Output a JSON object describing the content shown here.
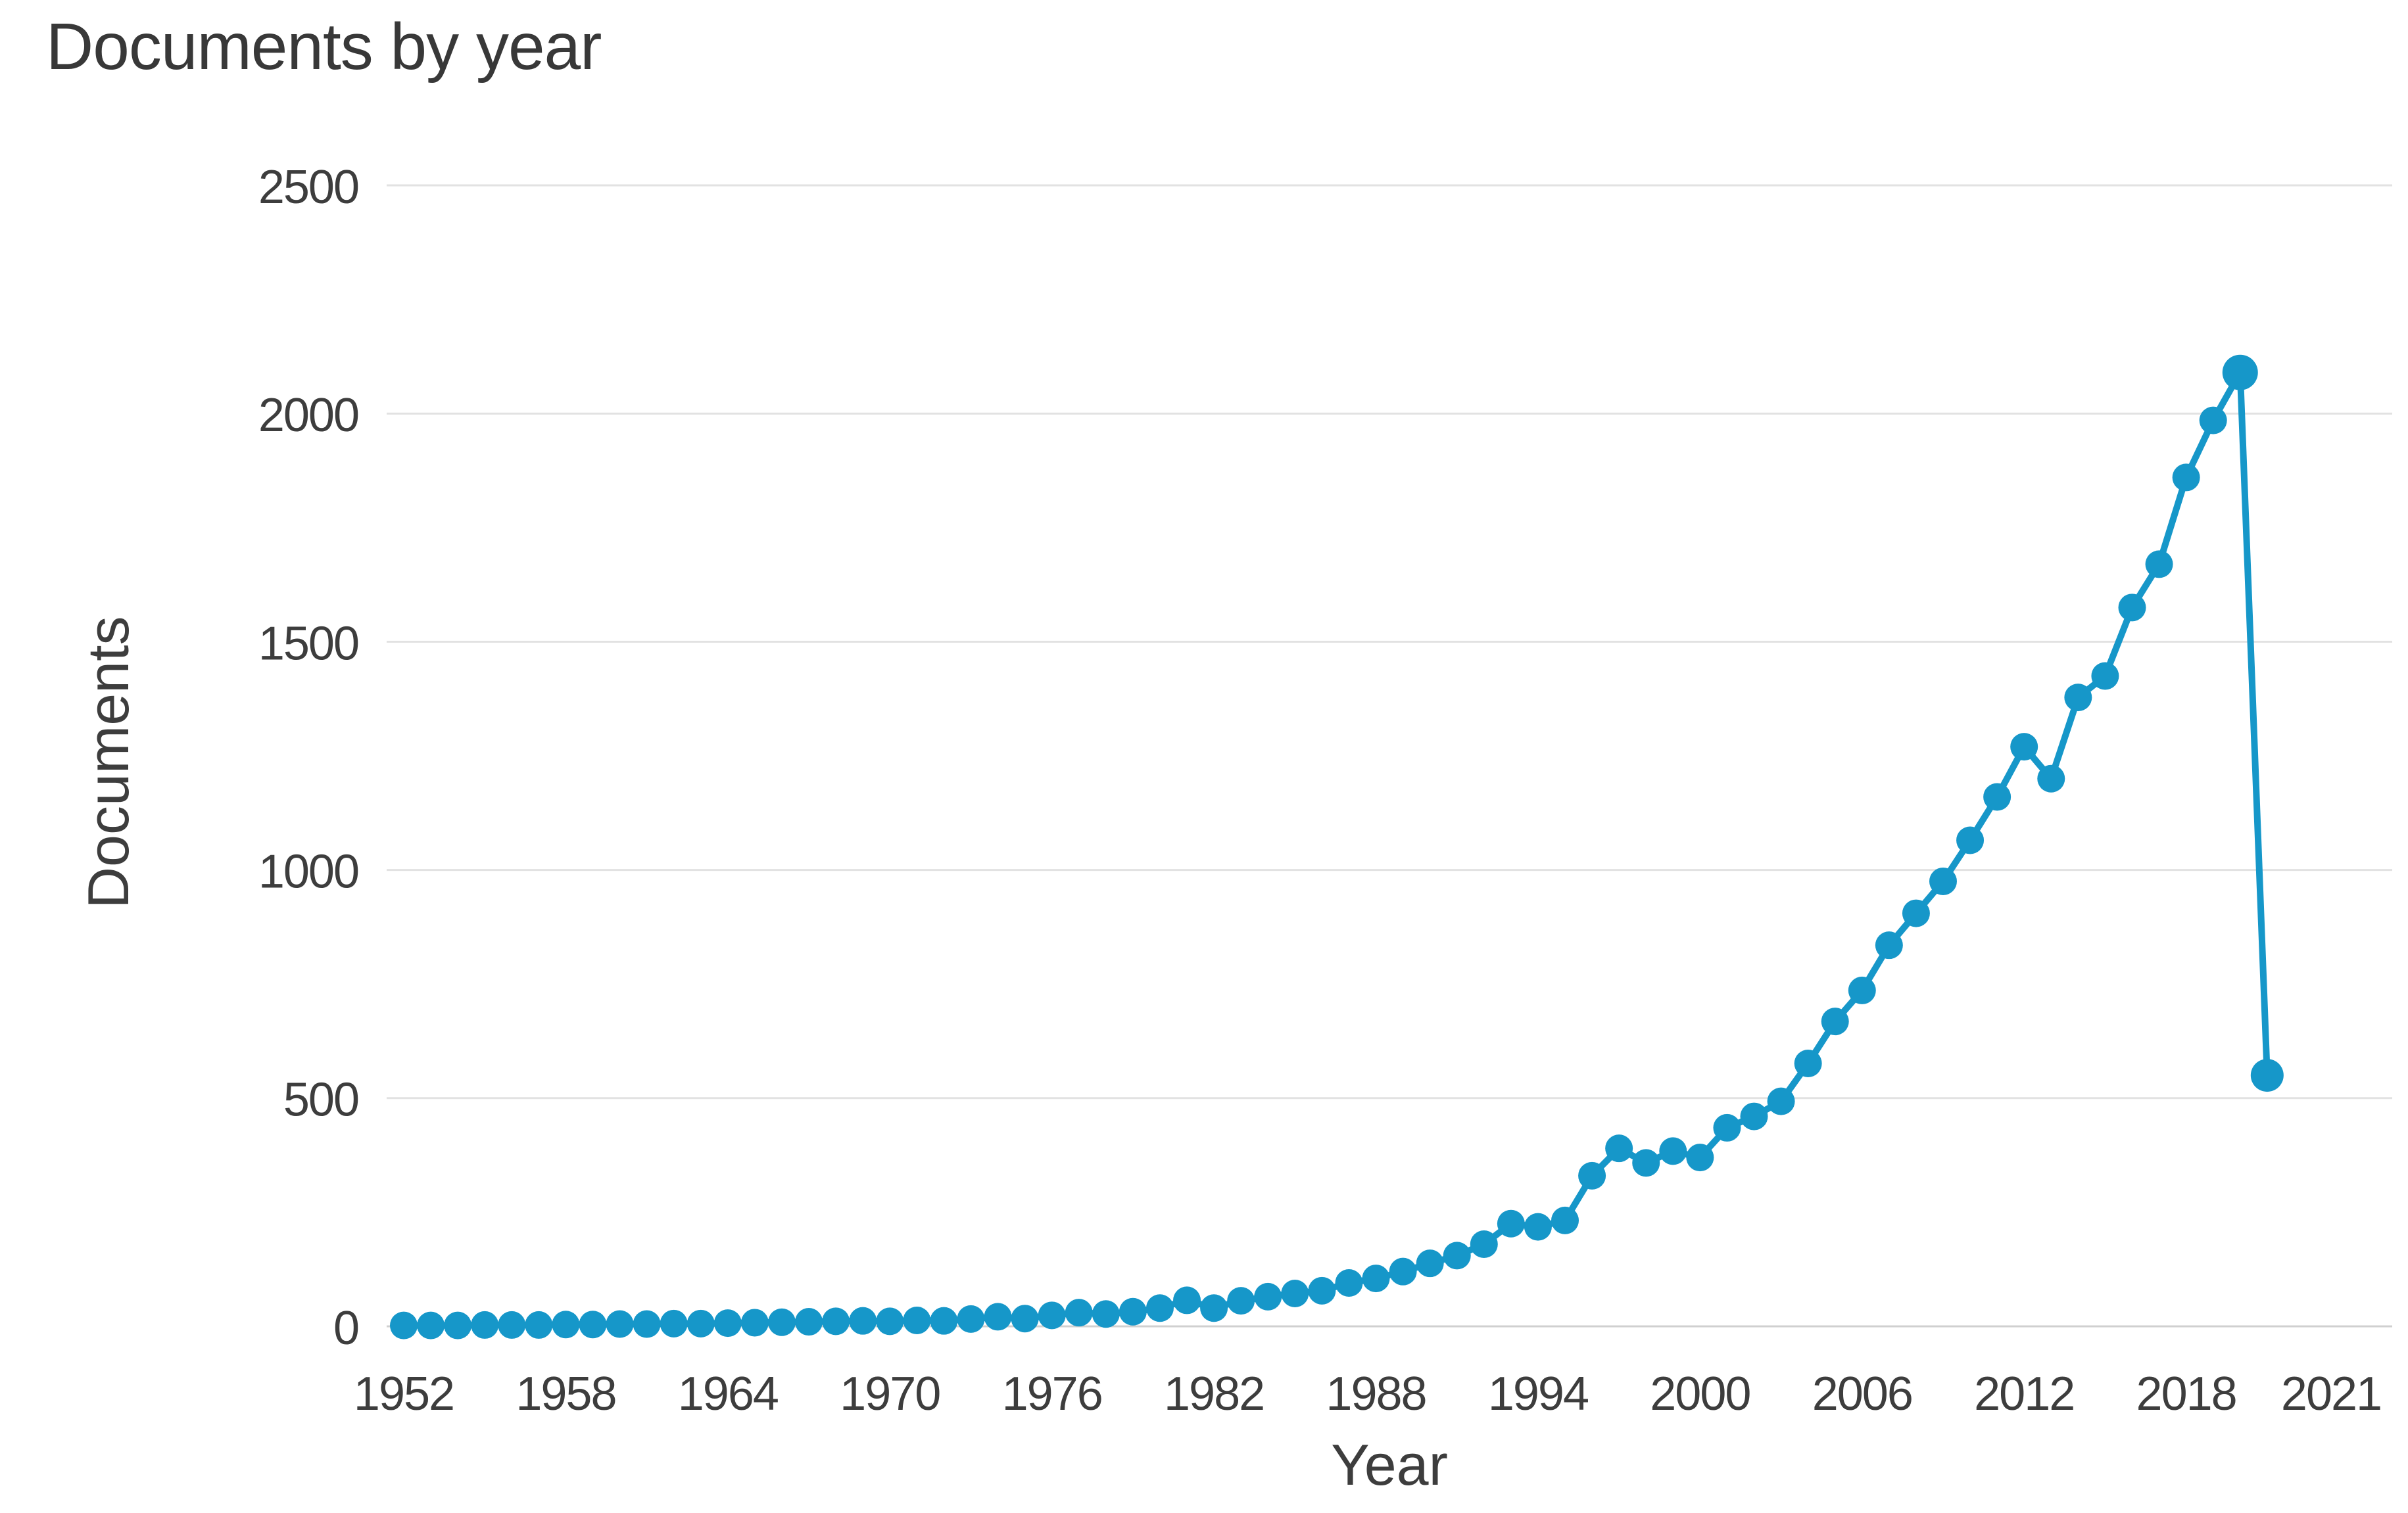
{
  "page": {
    "background": "#ffffff"
  },
  "style": {
    "line_color": "#1697c9",
    "marker_color": "#1697c9",
    "grid_color": "#e2e2e2",
    "zero_line_color": "#d0d0d0",
    "text_color": "#3d3d3d",
    "title_color": "#383838"
  },
  "chart_data": {
    "type": "line",
    "title": "Documents by year",
    "xlabel": "Year",
    "ylabel": "Documents",
    "legend": "none",
    "grid": "horizontal",
    "marker": "circle",
    "ylim": [
      0,
      2500
    ],
    "yticks": [
      0,
      500,
      1000,
      1500,
      2000,
      2500
    ],
    "xticks": [
      1952,
      1958,
      1964,
      1970,
      1976,
      1982,
      1988,
      1994,
      2000,
      2006,
      2012,
      2018,
      2021
    ],
    "x": [
      1952,
      1953,
      1954,
      1955,
      1956,
      1957,
      1958,
      1959,
      1960,
      1961,
      1962,
      1963,
      1964,
      1965,
      1966,
      1967,
      1968,
      1969,
      1970,
      1971,
      1972,
      1973,
      1974,
      1975,
      1976,
      1977,
      1978,
      1979,
      1980,
      1981,
      1982,
      1983,
      1984,
      1985,
      1986,
      1987,
      1988,
      1989,
      1990,
      1991,
      1992,
      1993,
      1994,
      1995,
      1996,
      1997,
      1998,
      1999,
      2000,
      2001,
      2002,
      2003,
      2004,
      2005,
      2006,
      2007,
      2008,
      2009,
      2010,
      2011,
      2012,
      2013,
      2014,
      2015,
      2016,
      2017,
      2018,
      2019,
      2020,
      2021
    ],
    "values": [
      2,
      2,
      2,
      3,
      3,
      3,
      4,
      4,
      5,
      5,
      6,
      6,
      7,
      8,
      9,
      10,
      11,
      12,
      11,
      13,
      12,
      16,
      21,
      17,
      24,
      30,
      27,
      32,
      40,
      57,
      40,
      56,
      65,
      72,
      78,
      95,
      105,
      120,
      138,
      155,
      180,
      225,
      218,
      232,
      330,
      390,
      358,
      384,
      370,
      435,
      460,
      493,
      576,
      668,
      736,
      835,
      905,
      975,
      1065,
      1160,
      1270,
      1200,
      1378,
      1425,
      1575,
      1670,
      1860,
      1985,
      2090,
      550
    ]
  }
}
